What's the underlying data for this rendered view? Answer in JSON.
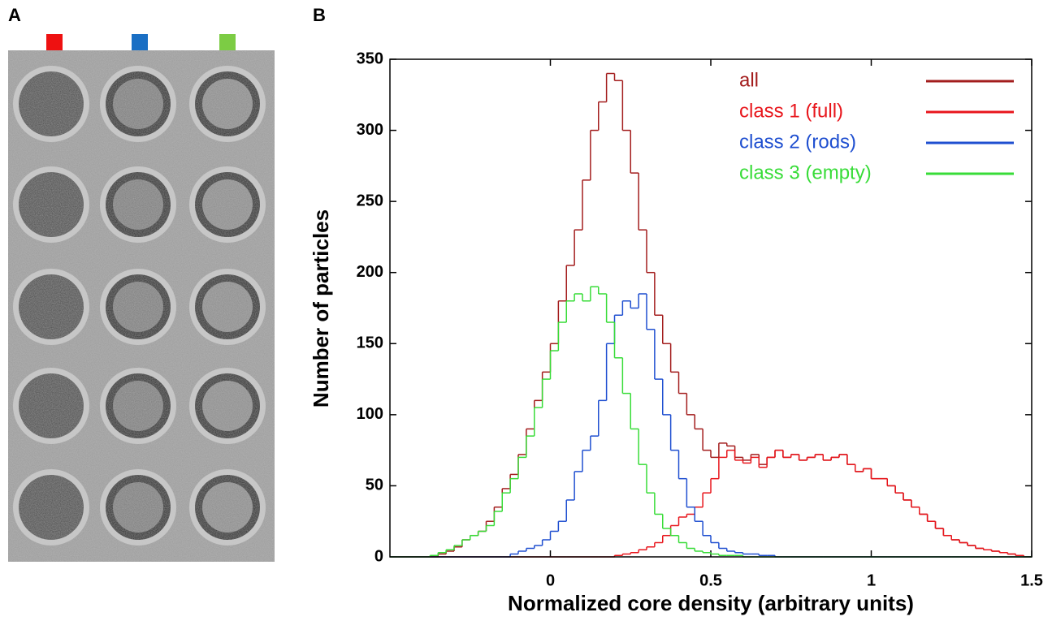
{
  "panel_labels": [
    "A",
    "B"
  ],
  "chart_data": {
    "type": "histogram",
    "xlabel": "Normalized core density (arbitrary units)",
    "ylabel": "Number of particles",
    "xlim": [
      -0.5,
      1.5
    ],
    "ylim": [
      0,
      350
    ],
    "xticks": [
      0,
      0.5,
      1,
      1.5
    ],
    "yticks": [
      0,
      50,
      100,
      150,
      200,
      250,
      300,
      350
    ],
    "legend": "upper right",
    "bins": [
      -0.5,
      -0.475,
      -0.45,
      -0.425,
      -0.4,
      -0.375,
      -0.35,
      -0.325,
      -0.3,
      -0.275,
      -0.25,
      -0.225,
      -0.2,
      -0.175,
      -0.15,
      -0.125,
      -0.1,
      -0.075,
      -0.05,
      -0.025,
      0,
      0.025,
      0.05,
      0.075,
      0.1,
      0.125,
      0.15,
      0.175,
      0.2,
      0.225,
      0.25,
      0.275,
      0.3,
      0.325,
      0.35,
      0.375,
      0.4,
      0.425,
      0.45,
      0.475,
      0.5,
      0.525,
      0.55,
      0.575,
      0.6,
      0.625,
      0.65,
      0.675,
      0.7,
      0.725,
      0.75,
      0.775,
      0.8,
      0.825,
      0.85,
      0.875,
      0.9,
      0.925,
      0.95,
      0.975,
      1,
      1.025,
      1.05,
      1.075,
      1.1,
      1.125,
      1.15,
      1.175,
      1.2,
      1.225,
      1.25,
      1.275,
      1.3,
      1.325,
      1.35,
      1.375,
      1.4,
      1.425,
      1.45,
      1.475,
      1.5
    ],
    "series": [
      {
        "name": "all",
        "color": "#a31d1d",
        "values": [
          0,
          0,
          0,
          0,
          0,
          0,
          2,
          4,
          7,
          12,
          15,
          18,
          25,
          35,
          48,
          58,
          72,
          90,
          110,
          130,
          150,
          180,
          205,
          230,
          265,
          300,
          320,
          340,
          335,
          300,
          270,
          230,
          200,
          170,
          150,
          130,
          115,
          100,
          90,
          75,
          70,
          80,
          78,
          70,
          68,
          72,
          65,
          70,
          75,
          70,
          72,
          68,
          70,
          72,
          68,
          70,
          72,
          65,
          60,
          62,
          55,
          55,
          50,
          45,
          40,
          35,
          30,
          25,
          20,
          15,
          12,
          10,
          8,
          6,
          5,
          4,
          3,
          2,
          1,
          0
        ]
      },
      {
        "name": "class 1 (full)",
        "color": "#e8161c",
        "values": [
          0,
          0,
          0,
          0,
          0,
          0,
          0,
          0,
          0,
          0,
          0,
          0,
          0,
          0,
          0,
          0,
          0,
          0,
          0,
          0,
          0,
          0,
          0,
          0,
          0,
          0,
          0,
          0,
          1,
          2,
          3,
          5,
          7,
          10,
          15,
          22,
          28,
          30,
          35,
          45,
          55,
          70,
          75,
          68,
          66,
          70,
          63,
          70,
          75,
          70,
          72,
          68,
          70,
          72,
          68,
          70,
          72,
          65,
          60,
          62,
          55,
          55,
          50,
          45,
          40,
          35,
          30,
          25,
          20,
          15,
          12,
          10,
          8,
          6,
          5,
          4,
          3,
          2,
          1,
          0
        ]
      },
      {
        "name": "class 2 (rods)",
        "color": "#1f4fd0",
        "values": [
          0,
          0,
          0,
          0,
          0,
          0,
          0,
          0,
          0,
          0,
          0,
          0,
          0,
          0,
          0,
          2,
          4,
          6,
          8,
          12,
          18,
          25,
          40,
          60,
          75,
          85,
          110,
          150,
          170,
          180,
          175,
          185,
          160,
          125,
          100,
          75,
          55,
          35,
          25,
          15,
          10,
          6,
          4,
          3,
          2,
          2,
          1,
          1,
          0,
          0,
          0,
          0,
          0,
          0,
          0,
          0,
          0,
          0,
          0,
          0,
          0,
          0,
          0,
          0,
          0,
          0,
          0,
          0,
          0,
          0,
          0,
          0,
          0,
          0,
          0,
          0,
          0,
          0,
          0,
          0
        ]
      },
      {
        "name": "class 3 (empty)",
        "color": "#38dc38",
        "values": [
          0,
          0,
          0,
          0,
          0,
          1,
          3,
          5,
          8,
          12,
          15,
          18,
          22,
          32,
          45,
          55,
          70,
          85,
          105,
          125,
          145,
          165,
          180,
          185,
          180,
          190,
          185,
          165,
          140,
          115,
          90,
          65,
          45,
          30,
          20,
          15,
          10,
          6,
          4,
          3,
          2,
          1,
          1,
          1,
          0,
          0,
          0,
          0,
          0,
          0,
          0,
          0,
          0,
          0,
          0,
          0,
          0,
          0,
          0,
          0,
          0,
          0,
          0,
          0,
          0,
          0,
          0,
          0,
          0,
          0,
          0,
          0,
          0,
          0,
          0,
          0,
          0,
          0,
          0,
          0
        ]
      }
    ]
  }
}
